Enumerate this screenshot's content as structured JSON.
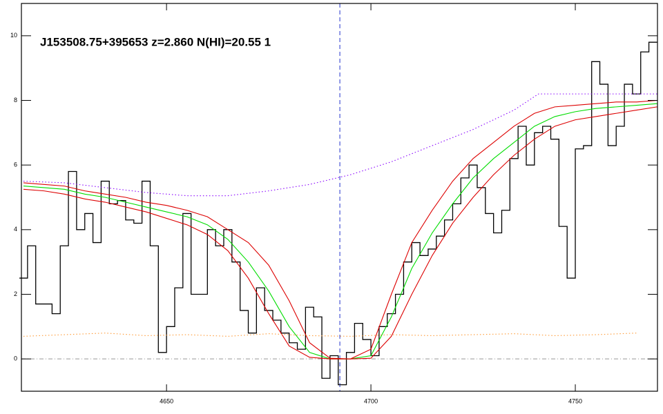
{
  "chart_data": {
    "type": "line",
    "title": "J153508.75+395653 z=2.860 N(HI)=20.55 1",
    "xlim": [
      4614.5,
      4770.1
    ],
    "ylim": [
      -1,
      11
    ],
    "xticks": [
      4650,
      4700,
      4750
    ],
    "yticks": [
      0,
      2,
      4,
      6,
      8,
      10
    ],
    "hline": 0,
    "vline": 4692.4,
    "series": [
      {
        "style": "steps",
        "color": "#000000",
        "x": [
          4615,
          4617,
          4619,
          4621,
          4623,
          4625,
          4627,
          4629,
          4631,
          4633,
          4635,
          4637,
          4639,
          4641,
          4643,
          4645,
          4647,
          4649,
          4651,
          4653,
          4655,
          4657,
          4659,
          4661,
          4663,
          4665,
          4667,
          4669,
          4671,
          4673,
          4675,
          4677,
          4679,
          4681,
          4683,
          4685,
          4687,
          4689,
          4691,
          4693,
          4695,
          4697,
          4699,
          4701,
          4703,
          4705,
          4707,
          4709,
          4711,
          4713,
          4715,
          4717,
          4719,
          4721,
          4723,
          4725,
          4727,
          4729,
          4731,
          4733,
          4735,
          4737,
          4739,
          4741,
          4743,
          4745,
          4747,
          4749,
          4751,
          4753,
          4755,
          4757,
          4759,
          4761,
          4763,
          4765,
          4767,
          4769
        ],
        "values": [
          2.5,
          3.5,
          1.7,
          1.7,
          1.4,
          3.5,
          5.8,
          4.0,
          4.5,
          3.6,
          5.5,
          4.8,
          4.9,
          4.3,
          4.2,
          5.5,
          3.5,
          0.2,
          1.0,
          2.2,
          4.5,
          2.0,
          2.0,
          4.0,
          3.5,
          4.0,
          3.0,
          1.5,
          0.8,
          2.2,
          1.5,
          1.2,
          0.8,
          0.5,
          0.3,
          1.6,
          1.3,
          -0.6,
          0.1,
          -0.8,
          0.2,
          1.1,
          0.6,
          0.1,
          1.0,
          1.4,
          2.0,
          3.0,
          3.6,
          3.2,
          3.4,
          3.8,
          4.3,
          4.8,
          5.6,
          6.0,
          5.3,
          4.5,
          3.9,
          4.6,
          6.2,
          7.2,
          6.0,
          7.0,
          7.2,
          6.8,
          4.1,
          2.5,
          6.5,
          6.6,
          9.2,
          8.5,
          6.6,
          7.2,
          8.5,
          8.2,
          9.5,
          9.8
        ]
      },
      {
        "style": "solid",
        "color": "#00dd00",
        "x": [
          4615,
          4620,
          4625,
          4630,
          4635,
          4640,
          4645,
          4650,
          4655,
          4660,
          4665,
          4670,
          4675,
          4680,
          4685,
          4690,
          4695,
          4700,
          4705,
          4710,
          4715,
          4720,
          4725,
          4730,
          4735,
          4740,
          4745,
          4750,
          4755,
          4760,
          4765,
          4770
        ],
        "values": [
          5.35,
          5.3,
          5.25,
          5.1,
          5.0,
          4.85,
          4.7,
          4.55,
          4.4,
          4.15,
          3.7,
          3.0,
          2.1,
          1.0,
          0.2,
          0.0,
          0.0,
          0.1,
          1.3,
          2.8,
          3.9,
          4.8,
          5.6,
          6.2,
          6.7,
          7.2,
          7.5,
          7.65,
          7.75,
          7.8,
          7.85,
          7.9
        ]
      },
      {
        "style": "solid",
        "color": "#dd0000",
        "x": [
          4615,
          4620,
          4625,
          4630,
          4635,
          4640,
          4645,
          4650,
          4655,
          4660,
          4665,
          4670,
          4675,
          4680,
          4685,
          4690,
          4695,
          4700,
          4705,
          4710,
          4715,
          4720,
          4725,
          4730,
          4735,
          4740,
          4745,
          4750,
          4755,
          4760,
          4765,
          4770
        ],
        "values": [
          5.45,
          5.4,
          5.35,
          5.2,
          5.1,
          5.0,
          4.85,
          4.75,
          4.6,
          4.4,
          4.0,
          3.6,
          2.9,
          1.8,
          0.5,
          0.02,
          0,
          0.3,
          2.0,
          3.6,
          4.6,
          5.5,
          6.2,
          6.7,
          7.2,
          7.6,
          7.8,
          7.85,
          7.9,
          7.95,
          7.95,
          8.0
        ]
      },
      {
        "style": "solid",
        "color": "#dd0000",
        "x": [
          4615,
          4620,
          4625,
          4630,
          4635,
          4640,
          4645,
          4650,
          4655,
          4660,
          4665,
          4670,
          4675,
          4680,
          4685,
          4690,
          4695,
          4700,
          4705,
          4710,
          4715,
          4720,
          4725,
          4730,
          4735,
          4740,
          4745,
          4750,
          4755,
          4760,
          4765,
          4770
        ],
        "values": [
          5.25,
          5.2,
          5.1,
          4.95,
          4.85,
          4.7,
          4.55,
          4.35,
          4.15,
          3.85,
          3.35,
          2.5,
          1.4,
          0.4,
          0.05,
          0,
          0,
          0.02,
          0.7,
          2.0,
          3.2,
          4.2,
          5.0,
          5.7,
          6.3,
          6.8,
          7.2,
          7.4,
          7.5,
          7.6,
          7.7,
          7.8
        ]
      },
      {
        "style": "dotted",
        "color": "#8800ff",
        "x": [
          4615,
          4625,
          4635,
          4645,
          4655,
          4665,
          4675,
          4685,
          4695,
          4705,
          4715,
          4725,
          4735,
          4741,
          4750,
          4760,
          4770
        ],
        "values": [
          5.5,
          5.45,
          5.3,
          5.15,
          5.05,
          5.05,
          5.2,
          5.4,
          5.7,
          6.1,
          6.6,
          7.1,
          7.7,
          8.2,
          8.2,
          8.2,
          8.2
        ]
      },
      {
        "style": "dotted",
        "color": "#ff9933",
        "x": [
          4615,
          4625,
          4635,
          4645,
          4655,
          4665,
          4675,
          4685,
          4695,
          4705,
          4715,
          4725,
          4735,
          4745,
          4755,
          4765
        ],
        "values": [
          0.7,
          0.75,
          0.8,
          0.72,
          0.75,
          0.7,
          0.78,
          0.72,
          0.7,
          0.75,
          0.72,
          0.75,
          0.78,
          0.72,
          0.75,
          0.8
        ]
      }
    ]
  }
}
